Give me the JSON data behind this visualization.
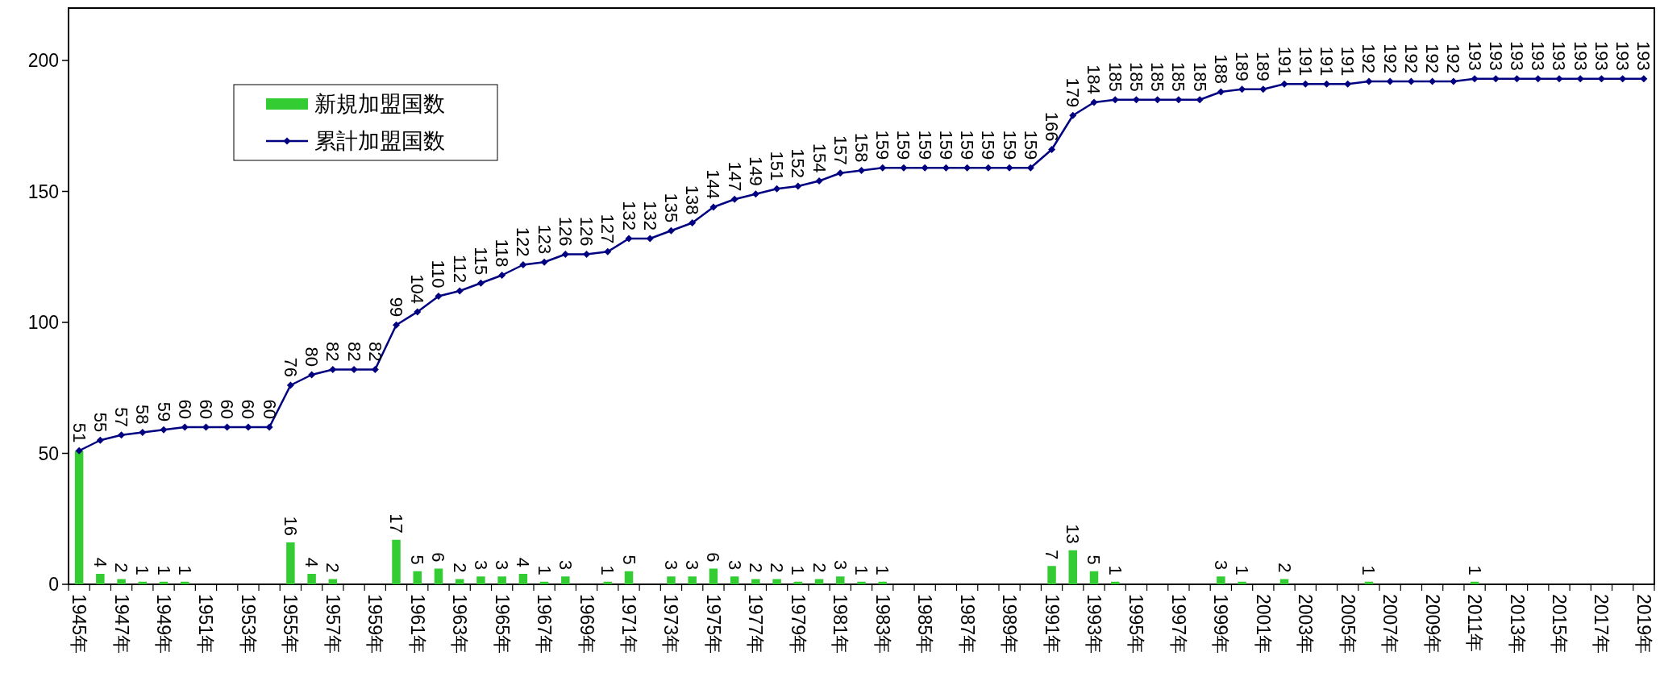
{
  "chart_data": {
    "type": "bar",
    "legend": "top left",
    "marker": "diamond",
    "ylim": [
      0,
      220
    ],
    "yticks": [
      0,
      50,
      100,
      150,
      200
    ],
    "categories": [
      "1945年",
      null,
      "1947年",
      null,
      "1949年",
      null,
      "1951年",
      null,
      "1953年",
      null,
      "1955年",
      null,
      "1957年",
      null,
      "1959年",
      null,
      "1961年",
      null,
      "1963年",
      null,
      "1965年",
      null,
      "1967年",
      null,
      "1969年",
      null,
      "1971年",
      null,
      "1973年",
      null,
      "1975年",
      null,
      "1977年",
      null,
      "1979年",
      null,
      "1981年",
      null,
      "1983年",
      null,
      "1985年",
      null,
      "1987年",
      null,
      "1989年",
      null,
      "1991年",
      null,
      "1993年",
      null,
      "1995年",
      null,
      "1997年",
      null,
      "1999年",
      null,
      "2001年",
      null,
      "2003年",
      null,
      "2005年",
      null,
      "2007年",
      null,
      "2009年",
      null,
      "2011年",
      null,
      "2013年",
      null,
      "2015年",
      null,
      "2017年",
      null,
      "2019年"
    ],
    "series": [
      {
        "name": "新規加盟国数",
        "color": "#33cc33",
        "values": [
          51,
          4,
          2,
          1,
          1,
          1,
          0,
          0,
          0,
          0,
          16,
          4,
          2,
          0,
          0,
          17,
          5,
          6,
          2,
          3,
          3,
          4,
          1,
          3,
          0,
          1,
          5,
          0,
          3,
          3,
          6,
          3,
          2,
          2,
          1,
          2,
          3,
          1,
          1,
          0,
          0,
          0,
          0,
          0,
          0,
          0,
          7,
          13,
          5,
          1,
          0,
          0,
          0,
          0,
          3,
          1,
          0,
          2,
          0,
          0,
          0,
          1,
          0,
          0,
          0,
          0,
          1,
          0,
          0,
          0,
          0,
          0,
          0,
          0,
          0
        ],
        "value_labels": [
          null,
          "4",
          "2",
          "1",
          "1",
          "1",
          null,
          null,
          null,
          null,
          "16",
          "4",
          "2",
          null,
          null,
          "17",
          "5",
          "6",
          "2",
          "3",
          "3",
          "4",
          "1",
          "3",
          null,
          "1",
          "5",
          null,
          "3",
          "3",
          "6",
          "3",
          "2",
          "2",
          "1",
          "2",
          "3",
          "1",
          "1",
          null,
          null,
          null,
          null,
          null,
          null,
          null,
          "7",
          "13",
          "5",
          "1",
          null,
          null,
          null,
          null,
          "3",
          "1",
          null,
          "2",
          null,
          null,
          null,
          "1",
          null,
          null,
          null,
          null,
          "1",
          null,
          null,
          null,
          null,
          null,
          null,
          null,
          null
        ]
      },
      {
        "name": "累計加盟国数",
        "type": "line",
        "color": "#000080",
        "values": [
          51,
          55,
          57,
          58,
          59,
          60,
          60,
          60,
          60,
          60,
          76,
          80,
          82,
          82,
          82,
          99,
          104,
          110,
          112,
          115,
          118,
          122,
          123,
          126,
          126,
          127,
          132,
          132,
          135,
          138,
          144,
          147,
          149,
          151,
          152,
          154,
          157,
          158,
          159,
          159,
          159,
          159,
          159,
          159,
          159,
          159,
          166,
          179,
          184,
          185,
          185,
          185,
          185,
          185,
          188,
          189,
          189,
          191,
          191,
          191,
          191,
          192,
          192,
          192,
          192,
          192,
          193,
          193,
          193,
          193,
          193,
          193,
          193,
          193,
          193
        ],
        "value_labels": [
          "51",
          "55",
          "57",
          "58",
          "59",
          "60",
          "60",
          "60",
          "60",
          "60",
          "76",
          "80",
          "82",
          "82",
          "82",
          "99",
          "104",
          "110",
          "112",
          "115",
          "118",
          "122",
          "123",
          "126",
          "126",
          "127",
          "132",
          "132",
          "135",
          "138",
          "144",
          "147",
          "149",
          "151",
          "152",
          "154",
          "157",
          "158",
          "159",
          "159",
          "159",
          "159",
          "159",
          "159",
          "159",
          "159",
          "166",
          "179",
          "184",
          "185",
          "185",
          "185",
          "185",
          "185",
          "188",
          "189",
          "189",
          "191",
          "191",
          "191",
          "191",
          "192",
          "192",
          "192",
          "192",
          "192",
          "193",
          "193",
          "193",
          "193",
          "193",
          "193",
          "193",
          "193",
          "193"
        ]
      }
    ]
  }
}
